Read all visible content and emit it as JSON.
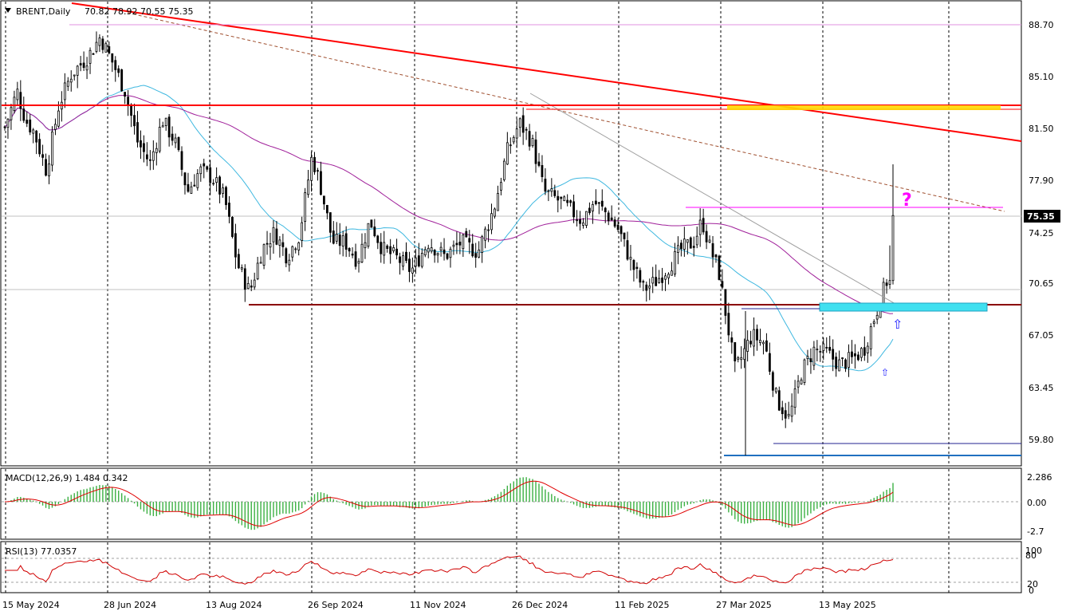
{
  "header": {
    "symbol_timeframe": "BRENT,Daily",
    "ohlc": "70.82 78.92 70.55 75.35",
    "menu_icon": "triangle-down-icon"
  },
  "price_axis": {
    "ticks": [
      "88.70",
      "85.10",
      "81.50",
      "77.90",
      "74.25",
      "70.65",
      "67.05",
      "63.45",
      "59.80"
    ],
    "current_price_label": "75.35"
  },
  "macd": {
    "label": "MACD(12,26,9) 1.484 0.342",
    "ticks": [
      "2.286",
      "0.00",
      "-2.7"
    ]
  },
  "rsi": {
    "label": "RSI(13) 77.0357",
    "ticks": [
      "100",
      "80",
      "20",
      "0"
    ]
  },
  "time_axis": {
    "labels": [
      "15 May 2024",
      "28 Jun 2024",
      "13 Aug 2024",
      "26 Sep 2024",
      "11 Nov 2024",
      "26 Dec 2024",
      "11 Feb 2025",
      "27 Mar 2025",
      "13 May 2025"
    ]
  },
  "annotations": {
    "question_mark": "?",
    "arrow_up_glyph": "⇧"
  },
  "colors": {
    "trendline_red": "#ff0000",
    "support_darkred": "#8b0000",
    "ma_blue": "#3fb8e0",
    "ma_purple": "#a0209a",
    "support_zone": "#40e0f0",
    "resistance_zone": "#ffd700",
    "macd_hist": "#3cb043",
    "macd_signal": "#e00000",
    "rsi_line": "#d00000",
    "magenta": "#ff00ff",
    "arrow_blue": "#2020ff"
  },
  "chart_data": {
    "type": "candlestick",
    "instrument": "BRENT",
    "timeframe": "Daily",
    "last_bar": {
      "open": 70.82,
      "high": 78.92,
      "low": 70.55,
      "close": 75.35
    },
    "price_range": [
      57.5,
      90.3
    ],
    "date_range": [
      "2024-05-15",
      "2025-06-13"
    ],
    "key_levels": {
      "horizontal_resistance": 83.0,
      "horizontal_support": 69.2,
      "recent_low": 58.4,
      "swing_low": 59.6,
      "projected_level": 76.0
    },
    "macd": {
      "fast": 12,
      "slow": 26,
      "signal": 9,
      "value": 1.484,
      "signal_value": 0.342
    },
    "rsi": {
      "period": 13,
      "value": 77.0357,
      "levels": [
        20,
        80
      ]
    }
  }
}
